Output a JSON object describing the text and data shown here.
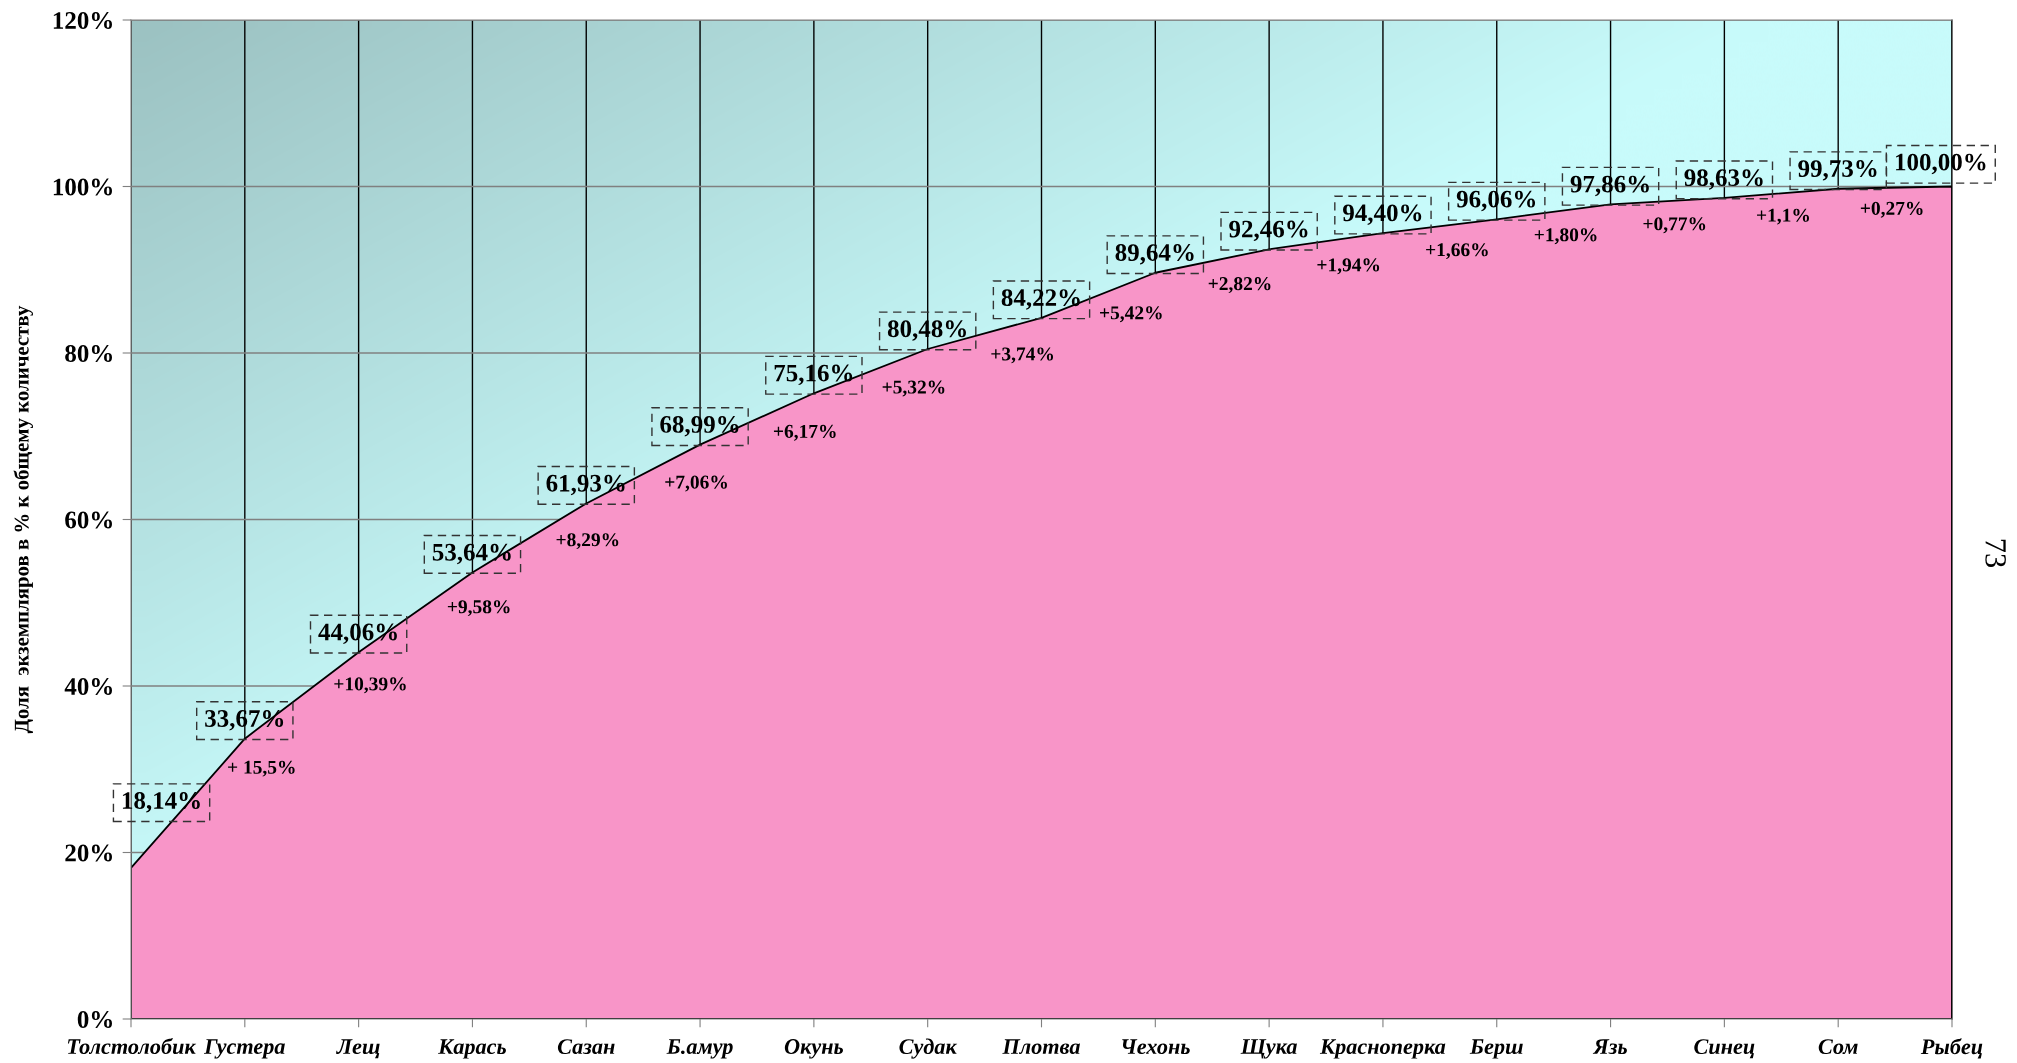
{
  "chart_data": {
    "type": "area",
    "ylabel": "Доля  экземпляров в % к общему количеству",
    "categories": [
      "Толстолобик",
      "Густера",
      "Лещ",
      "Карась",
      "Сазан",
      "Б.амур",
      "Окунь",
      "Судак",
      "Плотва",
      "Чехонь",
      "Щука",
      "Красноперка",
      "Берш",
      "Язь",
      "Синец",
      "Сом",
      "Рыбец"
    ],
    "values": [
      18.14,
      33.67,
      44.06,
      53.64,
      61.93,
      68.99,
      75.16,
      80.48,
      84.22,
      89.64,
      92.46,
      94.4,
      96.06,
      97.86,
      98.63,
      99.73,
      100.0
    ],
    "value_labels": [
      "18,14%",
      "33,67%",
      "44,06%",
      "53,64%",
      "61,93%",
      "68,99%",
      "75,16%",
      "80,48%",
      "84,22%",
      "89,64%",
      "92,46%",
      "94,40%",
      "96,06%",
      "97,86%",
      "98,63%",
      "99,73%",
      "100,00%"
    ],
    "color": "#f895c8",
    "ylim": [
      0,
      120
    ],
    "yticks": [
      {
        "value": 0,
        "label": "0%"
      },
      {
        "value": 20,
        "label": "20%"
      },
      {
        "value": 40,
        "label": "40%"
      },
      {
        "value": 60,
        "label": "60%"
      },
      {
        "value": 80,
        "label": "80%"
      },
      {
        "value": 100,
        "label": "100%"
      },
      {
        "value": 120,
        "label": "120%"
      }
    ],
    "grid": true,
    "annotations": [
      "+ 15,5%",
      "+10,39%",
      "+9,58%",
      "+8,29%",
      "+7,06%",
      "+6,17%",
      "+5,32%",
      "+3,74%",
      "+5,42%",
      "+2,82%",
      "+1,94%",
      "+1,66%",
      "+1,80%",
      "+0,77%",
      "+1,1%",
      "+0,27%",
      "73"
    ]
  }
}
